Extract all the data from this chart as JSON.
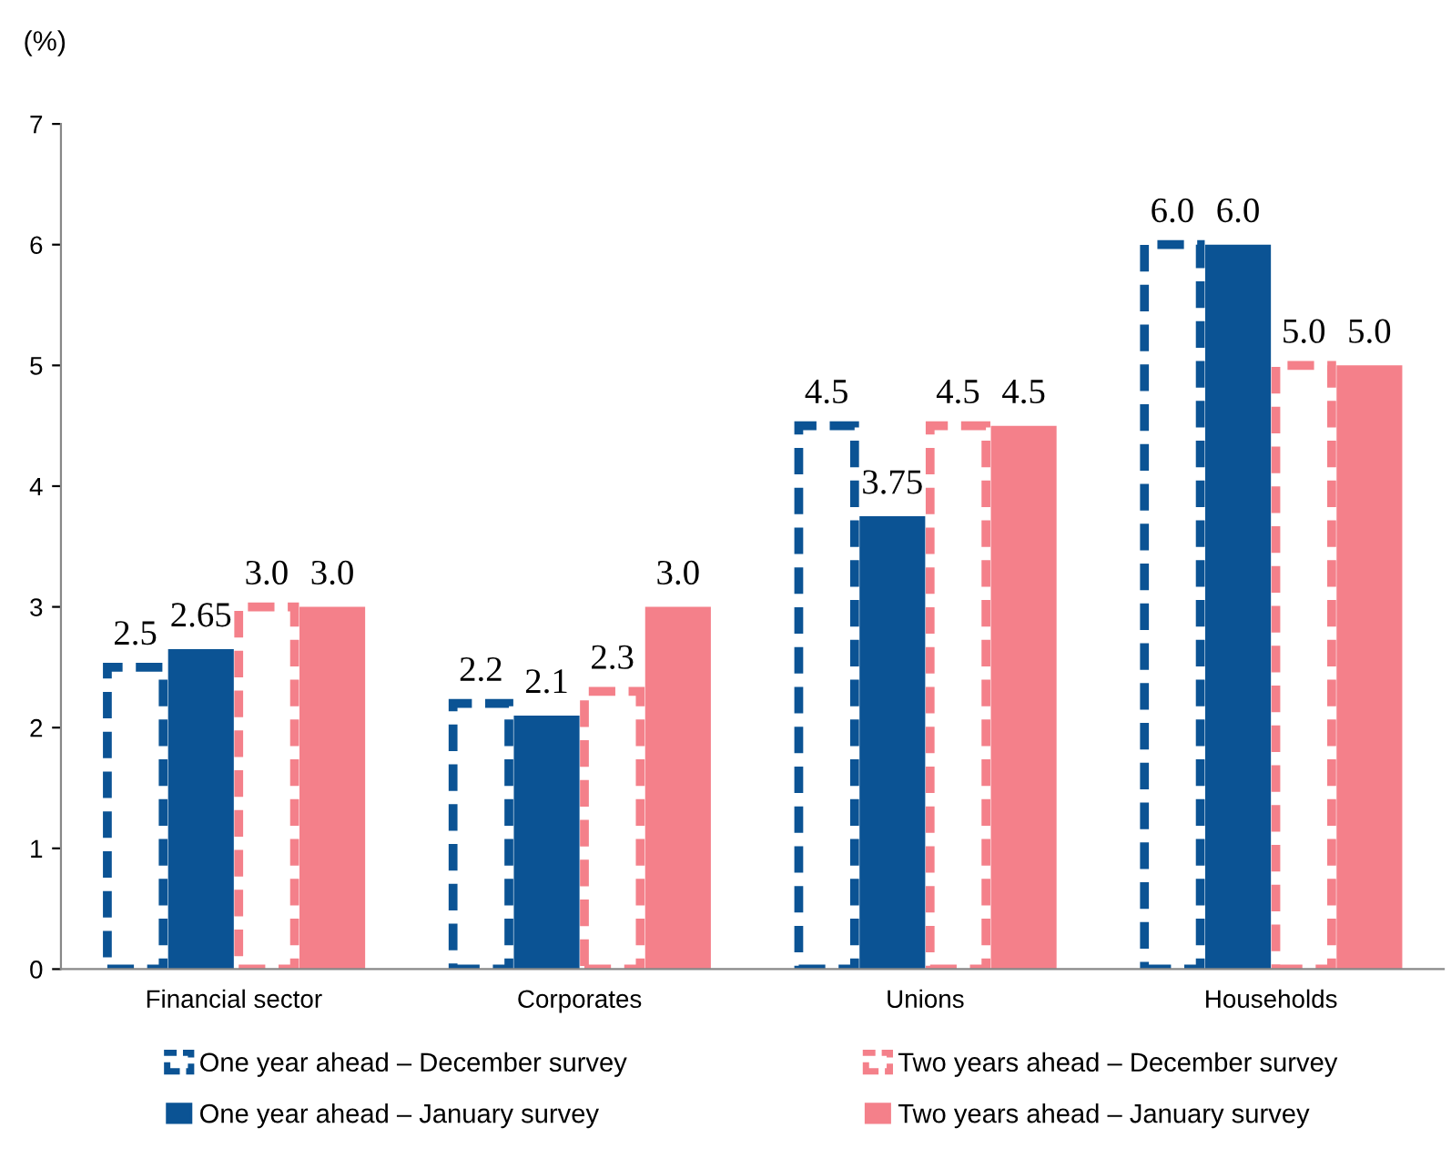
{
  "chart_data": {
    "type": "bar",
    "ylabel": "(%)",
    "categories": [
      "Financial sector",
      "Corporates",
      "Unions",
      "Households"
    ],
    "series": [
      {
        "name": "One year ahead – December survey",
        "color": "#0b5394",
        "line_style": "dashed",
        "values": [
          2.5,
          2.2,
          4.5,
          6.0
        ],
        "value_labels": [
          "2.5",
          "2.2",
          "4.5",
          "6.0"
        ]
      },
      {
        "name": "One year ahead – January survey",
        "color": "#0b5394",
        "line_style": "solid",
        "values": [
          2.65,
          2.1,
          3.75,
          6.0
        ],
        "value_labels": [
          "2.65",
          "2.1",
          "3.75",
          "6.0"
        ]
      },
      {
        "name": "Two years ahead – December survey",
        "color": "#f4808a",
        "line_style": "dashed",
        "values": [
          3.0,
          2.3,
          4.5,
          5.0
        ],
        "value_labels": [
          "3.0",
          "2.3",
          "4.5",
          "5.0"
        ]
      },
      {
        "name": "Two years ahead – January survey",
        "color": "#f4808a",
        "line_style": "solid",
        "values": [
          3.0,
          3.0,
          4.5,
          5.0
        ],
        "value_labels": [
          "3.0",
          "3.0",
          "4.5",
          "5.0"
        ]
      }
    ],
    "ylim": [
      0,
      7
    ],
    "yticks": [
      0,
      1,
      2,
      3,
      4,
      5,
      6,
      7
    ],
    "grid": false,
    "legend": "bottom"
  }
}
